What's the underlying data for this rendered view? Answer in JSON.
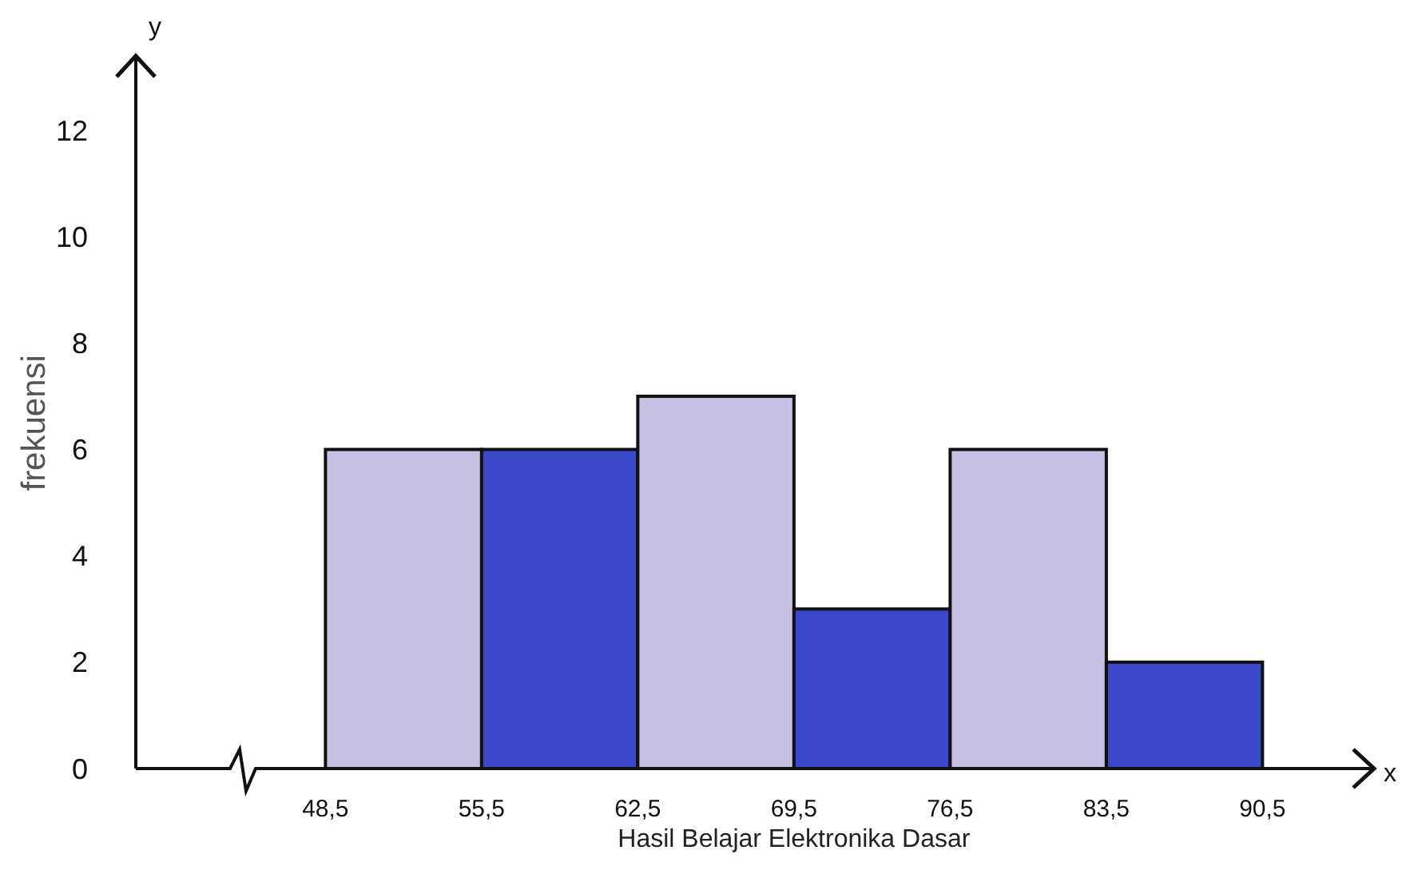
{
  "chart_data": {
    "type": "histogram",
    "xlabel": "Hasil Belajar Elektronika Dasar",
    "ylabel": "frekuensi",
    "bins": [
      48.5,
      55.5,
      62.5,
      69.5,
      76.5,
      83.5,
      90.5
    ],
    "values": [
      6,
      6,
      7,
      3,
      6,
      2
    ],
    "colors": [
      "#c5c0e4",
      "#3c48cc",
      "#c5c0e4",
      "#3c48cc",
      "#c5c0e4",
      "#3c48cc"
    ],
    "xlim": [
      40,
      95.5
    ],
    "xticks": [
      {
        "value": 48.5,
        "label": "48,5"
      },
      {
        "value": 55.5,
        "label": "55,5"
      },
      {
        "value": 62.5,
        "label": "62,5"
      },
      {
        "value": 69.5,
        "label": "69,5"
      },
      {
        "value": 76.5,
        "label": "76,5"
      },
      {
        "value": 83.5,
        "label": "83,5"
      },
      {
        "value": 90.5,
        "label": "90,5"
      }
    ],
    "ylim": [
      0,
      13.4
    ],
    "yticks": [
      0,
      2,
      4,
      6,
      8,
      10,
      12
    ],
    "grid": false,
    "annotations": [
      "y",
      "x"
    ]
  }
}
